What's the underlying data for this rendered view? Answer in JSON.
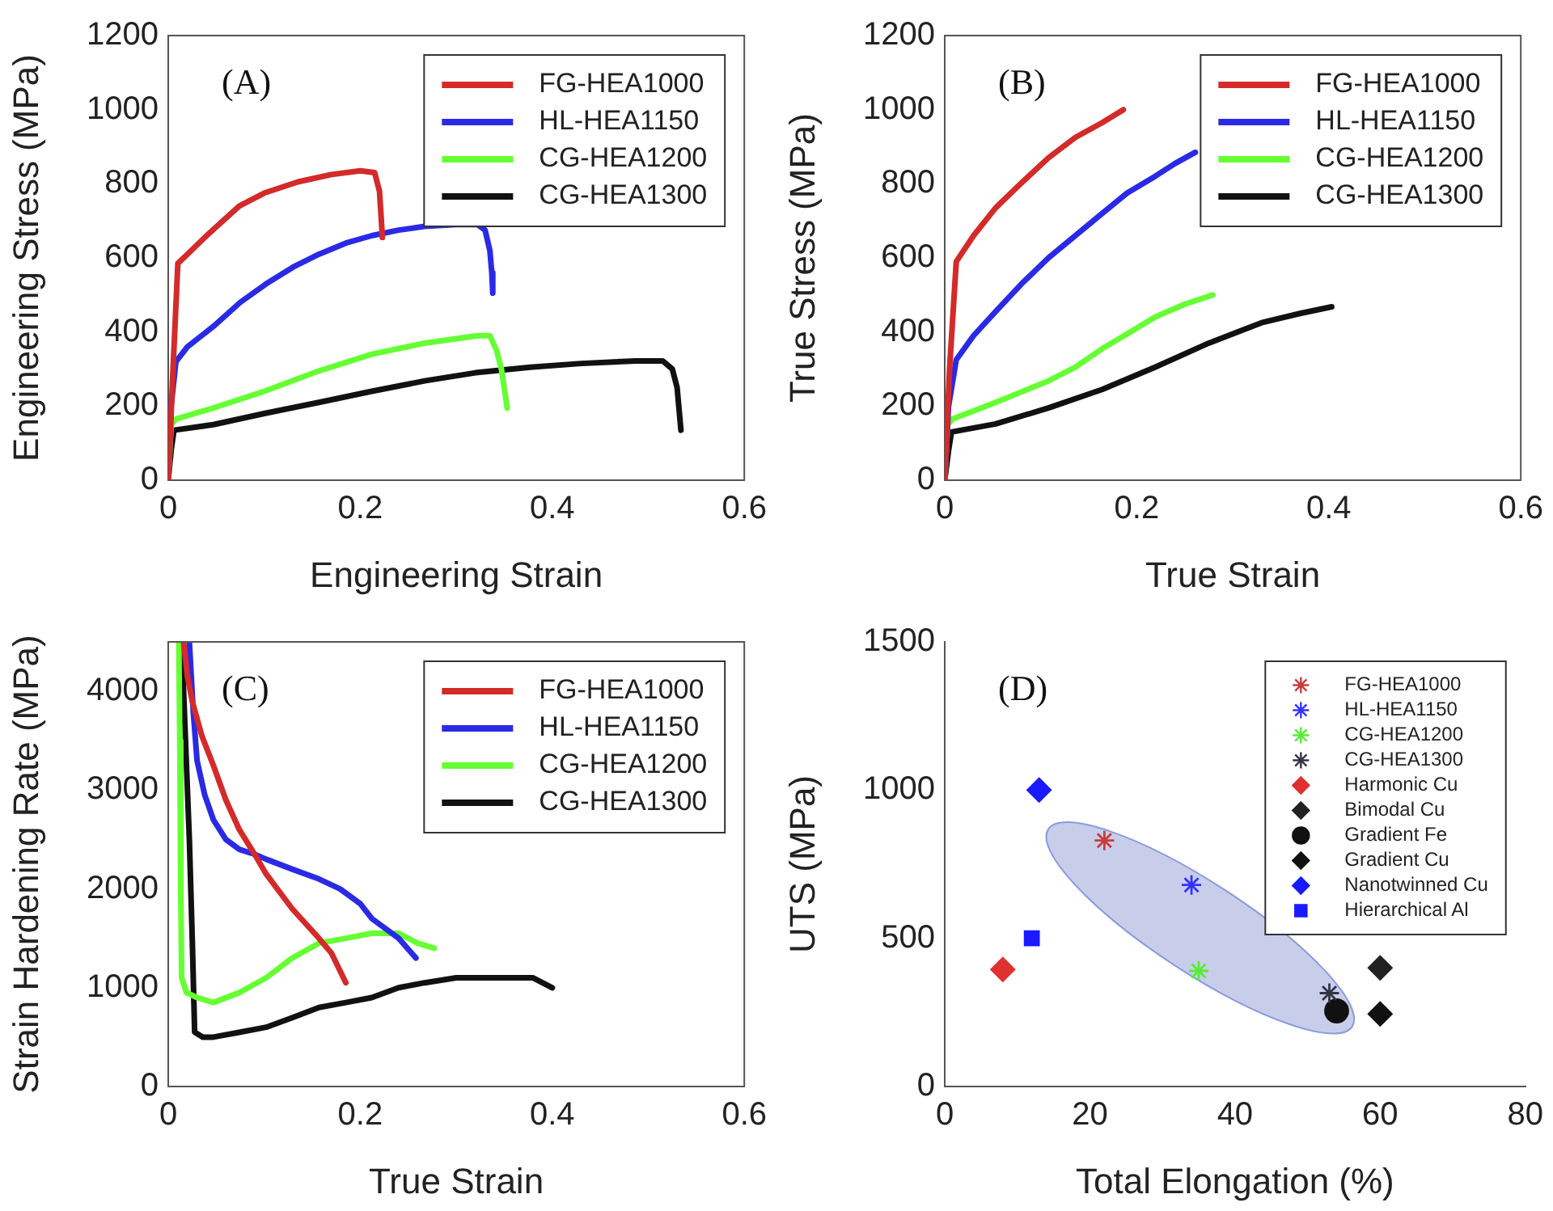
{
  "chart_data": [
    {
      "type": "line",
      "xlabel": "Engineering Strain",
      "ylabel": "Engineering Stress (MPa)",
      "annotations": [
        "(A)"
      ],
      "xlim": [
        0,
        0.6
      ],
      "xticks": [
        0,
        0.2,
        0.4,
        0.6
      ],
      "ylim": [
        0,
        1200
      ],
      "yticks": [
        0,
        200,
        400,
        600,
        800,
        1000,
        1200
      ],
      "legend": "top right",
      "series": [
        {
          "name": "FG-HEA1000",
          "color": "#d42a2a",
          "x": [
            0,
            0.005,
            0.01,
            0.02,
            0.04,
            0.074,
            0.1,
            0.135,
            0.17,
            0.2,
            0.215,
            0.22,
            0.222,
            0.223
          ],
          "values": [
            0,
            300,
            585,
            610,
            660,
            740,
            775,
            805,
            825,
            835,
            830,
            780,
            700,
            655
          ]
        },
        {
          "name": "HL-HEA1150",
          "color": "#2a2ae6",
          "x": [
            0,
            0.003,
            0.008,
            0.02,
            0.047,
            0.075,
            0.102,
            0.13,
            0.157,
            0.185,
            0.212,
            0.24,
            0.267,
            0.3,
            0.322,
            0.33,
            0.335,
            0.337,
            0.338
          ],
          "values": [
            0,
            200,
            320,
            360,
            415,
            480,
            530,
            575,
            610,
            640,
            660,
            675,
            685,
            690,
            690,
            675,
            620,
            560,
            505
          ]
        },
        {
          "name": "CG-HEA1200",
          "color": "#66ff33",
          "x": [
            0,
            0.003,
            0.008,
            0.047,
            0.1,
            0.157,
            0.212,
            0.267,
            0.322,
            0.335,
            0.342,
            0.347,
            0.353
          ],
          "values": [
            0,
            150,
            165,
            195,
            240,
            295,
            340,
            370,
            390,
            390,
            350,
            300,
            195
          ]
        },
        {
          "name": "CG-HEA1300",
          "color": "#111111",
          "x": [
            0,
            0.003,
            0.006,
            0.047,
            0.1,
            0.157,
            0.212,
            0.267,
            0.32,
            0.377,
            0.43,
            0.487,
            0.515,
            0.525,
            0.53,
            0.534
          ],
          "values": [
            0,
            80,
            135,
            150,
            180,
            210,
            240,
            268,
            290,
            305,
            315,
            322,
            322,
            300,
            250,
            135
          ]
        }
      ]
    },
    {
      "type": "line",
      "xlabel": "True Strain",
      "ylabel": "True Stress (MPa)",
      "annotations": [
        "(B)"
      ],
      "xlim": [
        0,
        0.6
      ],
      "xticks": [
        0,
        0.2,
        0.4,
        0.6
      ],
      "ylim": [
        0,
        1200
      ],
      "yticks": [
        0,
        200,
        400,
        600,
        800,
        1000,
        1200
      ],
      "legend": "top right",
      "series": [
        {
          "name": "FG-HEA1000",
          "color": "#d42a2a",
          "x": [
            0,
            0.005,
            0.012,
            0.03,
            0.053,
            0.081,
            0.108,
            0.136,
            0.164,
            0.186
          ],
          "values": [
            0,
            300,
            590,
            660,
            735,
            805,
            870,
            925,
            965,
            1000
          ]
        },
        {
          "name": "HL-HEA1150",
          "color": "#2a2ae6",
          "x": [
            0,
            0.004,
            0.012,
            0.03,
            0.053,
            0.08,
            0.108,
            0.136,
            0.164,
            0.19,
            0.219,
            0.24,
            0.261
          ],
          "values": [
            0,
            200,
            325,
            390,
            455,
            530,
            600,
            660,
            720,
            775,
            820,
            855,
            885
          ]
        },
        {
          "name": "CG-HEA1200",
          "color": "#66ff33",
          "x": [
            0,
            0.003,
            0.008,
            0.053,
            0.108,
            0.136,
            0.164,
            0.19,
            0.219,
            0.25,
            0.279
          ],
          "values": [
            0,
            150,
            165,
            210,
            268,
            305,
            355,
            395,
            440,
            475,
            500
          ]
        },
        {
          "name": "CG-HEA1300",
          "color": "#111111",
          "x": [
            0,
            0.004,
            0.007,
            0.053,
            0.108,
            0.164,
            0.219,
            0.275,
            0.33,
            0.37,
            0.403
          ],
          "values": [
            0,
            80,
            130,
            152,
            195,
            245,
            305,
            370,
            425,
            450,
            468
          ]
        }
      ]
    },
    {
      "type": "line",
      "xlabel": "True Strain",
      "ylabel": "Strain Hardening Rate (MPa)",
      "annotations": [
        "(C)"
      ],
      "xlim": [
        0,
        0.6
      ],
      "xticks": [
        0,
        0.2,
        0.4,
        0.6
      ],
      "ylim": [
        0,
        4500
      ],
      "yticks": [
        0,
        1000,
        2000,
        3000,
        4000
      ],
      "legend": "top right",
      "series": [
        {
          "name": "FG-HEA1000",
          "color": "#d42a2a",
          "x": [
            0.016,
            0.02,
            0.025,
            0.035,
            0.047,
            0.06,
            0.074,
            0.09,
            0.102,
            0.129,
            0.157,
            0.17,
            0.185
          ],
          "values": [
            4500,
            4150,
            3900,
            3550,
            3250,
            2900,
            2600,
            2350,
            2150,
            1800,
            1500,
            1350,
            1050
          ]
        },
        {
          "name": "HL-HEA1150",
          "color": "#2a2ae6",
          "x": [
            0.022,
            0.026,
            0.03,
            0.038,
            0.047,
            0.06,
            0.074,
            0.09,
            0.102,
            0.129,
            0.157,
            0.179,
            0.2,
            0.212,
            0.24,
            0.258
          ],
          "values": [
            4500,
            3800,
            3300,
            2950,
            2700,
            2500,
            2400,
            2350,
            2300,
            2200,
            2100,
            2000,
            1850,
            1700,
            1500,
            1300
          ]
        },
        {
          "name": "CG-HEA1200",
          "color": "#66ff33",
          "x": [
            0.011,
            0.012,
            0.013,
            0.014,
            0.019,
            0.03,
            0.047,
            0.074,
            0.102,
            0.129,
            0.157,
            0.185,
            0.212,
            0.24,
            0.26,
            0.277
          ],
          "values": [
            4500,
            3500,
            2000,
            1100,
            950,
            900,
            850,
            950,
            1100,
            1300,
            1450,
            1500,
            1550,
            1550,
            1450,
            1400
          ]
        },
        {
          "name": "CG-HEA1300",
          "color": "#111111",
          "x": [
            0.014,
            0.018,
            0.022,
            0.025,
            0.0275,
            0.036,
            0.047,
            0.075,
            0.102,
            0.13,
            0.157,
            0.185,
            0.212,
            0.24,
            0.267,
            0.3,
            0.322,
            0.36,
            0.38,
            0.4
          ],
          "values": [
            4500,
            3500,
            2500,
            1500,
            550,
            500,
            500,
            550,
            600,
            700,
            800,
            850,
            900,
            1000,
            1050,
            1100,
            1100,
            1100,
            1100,
            1000
          ]
        }
      ]
    },
    {
      "type": "scatter",
      "xlabel": "Total Elongation (%)",
      "ylabel": "UTS (MPa)",
      "annotations": [
        "(D)"
      ],
      "xlim": [
        0,
        80
      ],
      "xticks": [
        0,
        20,
        40,
        60,
        80
      ],
      "ylim": [
        0,
        1500
      ],
      "yticks": [
        0,
        500,
        1000,
        1500
      ],
      "legend": "top right",
      "series": [
        {
          "name": "FG-HEA1000",
          "color": "#c83c3c",
          "marker": "cross",
          "x": [
            22
          ],
          "values": [
            830
          ]
        },
        {
          "name": "HL-HEA1150",
          "color": "#3333ff",
          "marker": "cross",
          "x": [
            34
          ],
          "values": [
            680
          ]
        },
        {
          "name": "CG-HEA1200",
          "color": "#55ee33",
          "marker": "cross",
          "x": [
            35
          ],
          "values": [
            390
          ]
        },
        {
          "name": "CG-HEA1300",
          "color": "#333344",
          "marker": "cross",
          "x": [
            53
          ],
          "values": [
            315
          ]
        },
        {
          "name": "Harmonic Cu",
          "color": "#e03030",
          "marker": "diamond",
          "x": [
            8
          ],
          "values": [
            395
          ]
        },
        {
          "name": "Bimodal Cu",
          "color": "#222222",
          "marker": "diamond",
          "x": [
            60
          ],
          "values": [
            400
          ]
        },
        {
          "name": "Gradient Fe",
          "color": "#111111",
          "marker": "circle",
          "x": [
            54
          ],
          "values": [
            255
          ]
        },
        {
          "name": "Gradient Cu",
          "color": "#111111",
          "marker": "diamond",
          "x": [
            60
          ],
          "values": [
            245
          ]
        },
        {
          "name": "Nanotwinned Cu",
          "color": "#1a1aff",
          "marker": "diamond",
          "x": [
            13
          ],
          "values": [
            1000
          ]
        },
        {
          "name": "Hierarchical Al",
          "color": "#1a1aff",
          "marker": "square",
          "x": [
            12
          ],
          "values": [
            500
          ]
        }
      ]
    }
  ]
}
